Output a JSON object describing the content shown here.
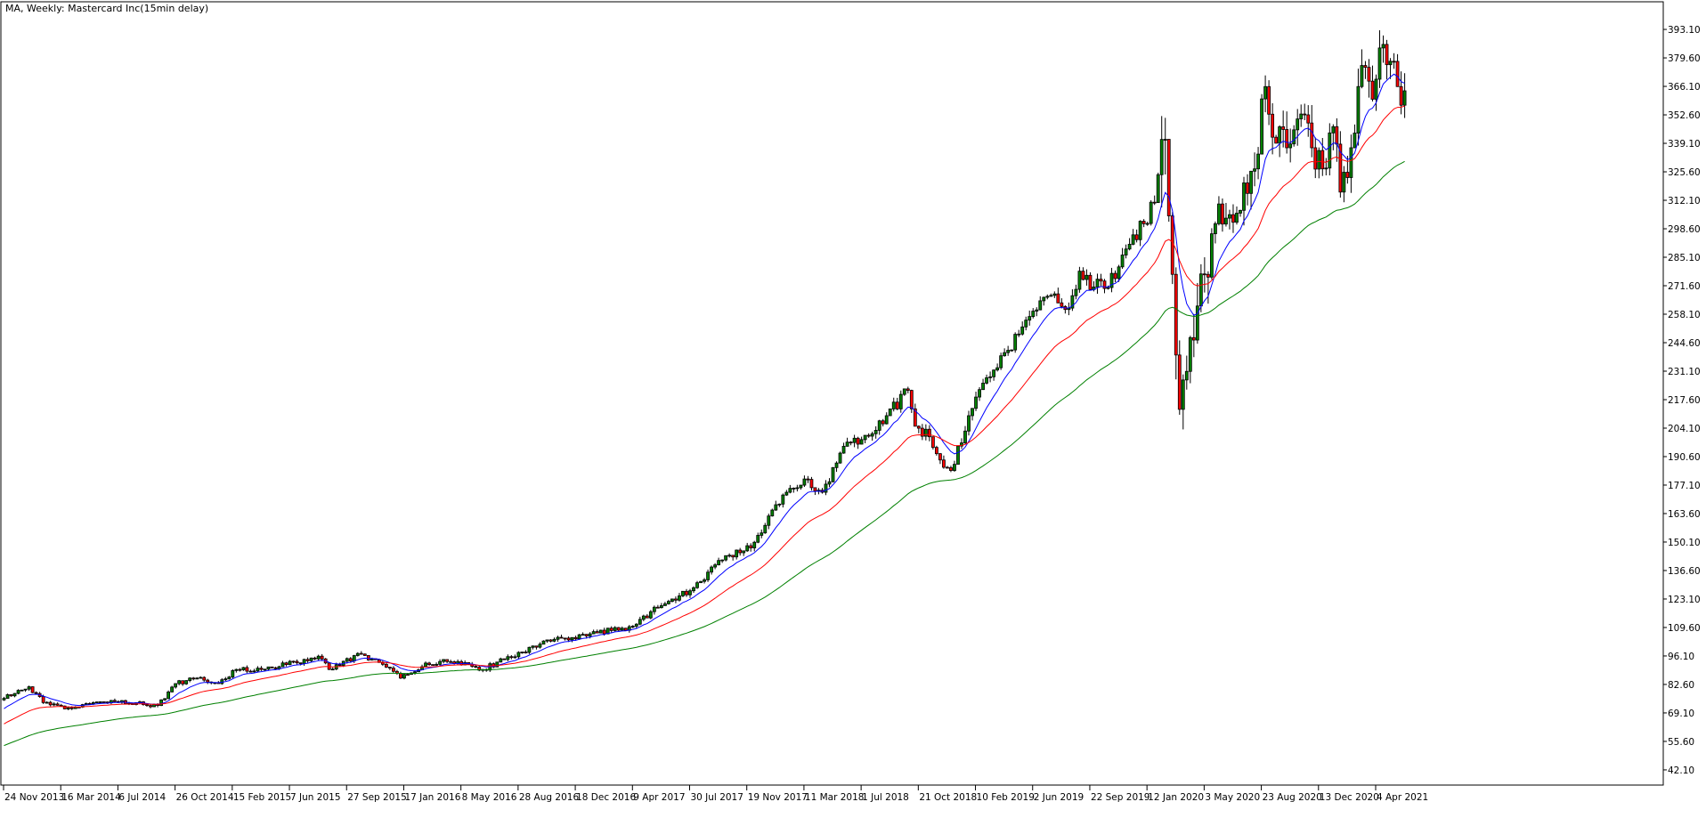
{
  "header": {
    "title": "MA, Weekly:  Mastercard Inc(15min delay)"
  },
  "colors": {
    "background": "#ffffff",
    "bull_body": "#008000",
    "bear_body": "#ff0000",
    "wick": "#000000",
    "ma_fast": "#0000ff",
    "ma_mid": "#ff0000",
    "ma_slow": "#008000"
  },
  "chart_data": {
    "type": "candlestick",
    "symbol": "MA",
    "timeframe": "Weekly",
    "ylim": [
      34.9,
      406.2
    ],
    "grid": false,
    "y_ticks": [
      "393.10",
      "379.60",
      "366.10",
      "352.60",
      "339.10",
      "325.60",
      "312.10",
      "298.60",
      "285.10",
      "271.60",
      "258.10",
      "244.60",
      "231.10",
      "217.60",
      "204.10",
      "190.60",
      "177.10",
      "163.60",
      "150.10",
      "136.60",
      "123.10",
      "109.60",
      "96.10",
      "82.60",
      "69.10",
      "55.60",
      "42.10"
    ],
    "x_ticks": [
      "24 Nov 2013",
      "16 Mar 2014",
      "6 Jul 2014",
      "26 Oct 2014",
      "15 Feb 2015",
      "7 Jun 2015",
      "27 Sep 2015",
      "17 Jan 2016",
      "8 May 2016",
      "28 Aug 2016",
      "18 Dec 2016",
      "9 Apr 2017",
      "30 Jul 2017",
      "19 Nov 2017",
      "11 Mar 2018",
      "1 Jul 2018",
      "21 Oct 2018",
      "10 Feb 2019",
      "2 Jun 2019",
      "22 Sep 2019",
      "12 Jan 2020",
      "3 May 2020",
      "23 Aug 2020",
      "13 Dec 2020",
      "4 Apr 2021"
    ],
    "x_tick_interval_weeks": 16,
    "first_bar": "2013-11-24",
    "last_bar": "2021-05-30",
    "weekly_close_approx": [
      [
        "2013-11-24",
        76
      ],
      [
        "2014-01-12",
        81.5
      ],
      [
        "2014-02-09",
        74
      ],
      [
        "2014-03-23",
        71
      ],
      [
        "2014-06-22",
        75
      ],
      [
        "2014-09-21",
        72.6
      ],
      [
        "2014-10-26",
        83
      ],
      [
        "2014-12-07",
        85.6
      ],
      [
        "2015-01-18",
        83
      ],
      [
        "2015-02-22",
        89.7
      ],
      [
        "2015-04-12",
        89.7
      ],
      [
        "2015-05-31",
        92
      ],
      [
        "2015-08-02",
        96
      ],
      [
        "2015-08-23",
        89.7
      ],
      [
        "2015-10-25",
        97
      ],
      [
        "2015-11-29",
        93
      ],
      [
        "2016-01-10",
        85.6
      ],
      [
        "2016-02-21",
        91
      ],
      [
        "2016-04-03",
        94.4
      ],
      [
        "2016-06-19",
        89.7
      ],
      [
        "2016-07-31",
        94.4
      ],
      [
        "2016-10-23",
        103.7
      ],
      [
        "2016-12-04",
        103.7
      ],
      [
        "2017-01-29",
        107
      ],
      [
        "2017-04-02",
        110
      ],
      [
        "2017-05-28",
        119
      ],
      [
        "2017-07-30",
        127
      ],
      [
        "2017-10-01",
        141.6
      ],
      [
        "2017-12-03",
        150
      ],
      [
        "2017-12-24",
        158
      ],
      [
        "2018-02-04",
        173.7
      ],
      [
        "2018-03-11",
        180
      ],
      [
        "2018-04-15",
        173.7
      ],
      [
        "2018-05-27",
        195.5
      ],
      [
        "2018-07-08",
        200.7
      ],
      [
        "2018-08-19",
        210
      ],
      [
        "2018-09-30",
        222
      ],
      [
        "2018-10-14",
        205
      ],
      [
        "2018-11-11",
        200
      ],
      [
        "2018-12-02",
        189
      ],
      [
        "2018-12-23",
        184
      ],
      [
        "2019-01-27",
        210
      ],
      [
        "2019-03-03",
        228
      ],
      [
        "2019-04-14",
        241
      ],
      [
        "2019-05-26",
        257
      ],
      [
        "2019-07-07",
        267
      ],
      [
        "2019-08-11",
        261
      ],
      [
        "2019-09-01",
        278.5
      ],
      [
        "2019-09-29",
        271
      ],
      [
        "2019-11-10",
        275
      ],
      [
        "2019-12-01",
        289
      ],
      [
        "2020-01-05",
        301
      ],
      [
        "2020-01-26",
        311
      ],
      [
        "2020-02-16",
        341
      ],
      [
        "2020-03-01",
        277
      ],
      [
        "2020-03-15",
        213
      ],
      [
        "2020-03-29",
        231
      ],
      [
        "2020-04-19",
        262
      ],
      [
        "2020-05-03",
        277
      ],
      [
        "2020-05-24",
        301
      ],
      [
        "2020-07-05",
        306
      ],
      [
        "2020-08-09",
        327
      ],
      [
        "2020-08-30",
        366
      ],
      [
        "2020-09-13",
        342
      ],
      [
        "2020-10-11",
        337
      ],
      [
        "2020-11-08",
        353
      ],
      [
        "2020-11-29",
        337
      ],
      [
        "2020-12-20",
        327
      ],
      [
        "2021-01-10",
        347
      ],
      [
        "2021-01-24",
        316
      ],
      [
        "2021-02-14",
        337
      ],
      [
        "2021-03-07",
        376
      ],
      [
        "2021-03-28",
        360
      ],
      [
        "2021-04-18",
        386
      ],
      [
        "2021-05-02",
        378
      ],
      [
        "2021-05-16",
        366
      ],
      [
        "2021-05-30",
        364
      ]
    ],
    "moving_averages": [
      {
        "color": "#0000ff",
        "start_value": 70
      },
      {
        "color": "#ff0000",
        "start_value": 63
      },
      {
        "color": "#008000",
        "start_value": 53
      }
    ]
  }
}
